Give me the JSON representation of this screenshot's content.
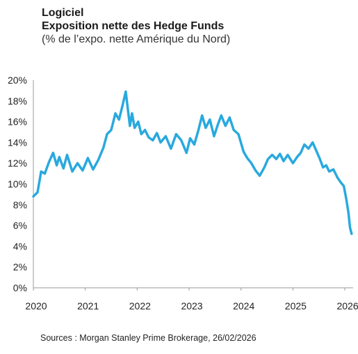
{
  "header": {
    "title": "Logiciel",
    "subtitle": "Exposition nette des Hedge Funds",
    "note": "(% de l’expo. nette Amérique du Nord)"
  },
  "source": "Sources : Morgan Stanley Prime Brokerage, 26/02/2026",
  "chart_data": {
    "type": "line",
    "title": "Exposition nette des Hedge Funds",
    "xlabel": "",
    "ylabel": "",
    "xlim": [
      2020.0,
      2026.16
    ],
    "ylim": [
      0,
      20
    ],
    "y_ticks": [
      "0%",
      "2%",
      "4%",
      "6%",
      "8%",
      "10%",
      "12%",
      "14%",
      "16%",
      "18%",
      "20%"
    ],
    "x_ticks": [
      "2020",
      "2021",
      "2022",
      "2023",
      "2024",
      "2025",
      "2026"
    ],
    "grid": false,
    "legend": "none",
    "series": [
      {
        "color": "#29a9de",
        "x": [
          2020.0,
          2020.08,
          2020.15,
          2020.22,
          2020.3,
          2020.38,
          2020.45,
          2020.5,
          2020.58,
          2020.65,
          2020.75,
          2020.85,
          2020.95,
          2021.05,
          2021.15,
          2021.25,
          2021.35,
          2021.42,
          2021.5,
          2021.58,
          2021.65,
          2021.72,
          2021.78,
          2021.82,
          2021.86,
          2021.9,
          2021.95,
          2022.02,
          2022.08,
          2022.15,
          2022.22,
          2022.3,
          2022.38,
          2022.45,
          2022.55,
          2022.65,
          2022.75,
          2022.85,
          2022.95,
          2023.02,
          2023.1,
          2023.18,
          2023.25,
          2023.32,
          2023.4,
          2023.48,
          2023.56,
          2023.62,
          2023.7,
          2023.78,
          2023.86,
          2023.95,
          2024.05,
          2024.12,
          2024.2,
          2024.28,
          2024.36,
          2024.45,
          2024.52,
          2024.6,
          2024.68,
          2024.75,
          2024.82,
          2024.9,
          2025.0,
          2025.08,
          2025.15,
          2025.22,
          2025.3,
          2025.38,
          2025.45,
          2025.52,
          2025.58,
          2025.64,
          2025.7,
          2025.78,
          2025.86,
          2025.93,
          2025.98,
          2026.03,
          2026.07,
          2026.1,
          2026.13
        ],
        "y": [
          8.8,
          9.2,
          11.2,
          11.0,
          12.1,
          13.0,
          11.8,
          12.6,
          11.5,
          12.8,
          11.2,
          12.0,
          11.3,
          12.5,
          11.4,
          12.3,
          13.5,
          14.8,
          15.2,
          16.8,
          16.2,
          17.6,
          18.9,
          17.2,
          15.6,
          16.8,
          15.4,
          16.0,
          14.8,
          15.2,
          14.5,
          14.2,
          14.9,
          14.0,
          14.6,
          13.4,
          14.8,
          14.2,
          13.0,
          14.4,
          13.8,
          15.2,
          16.6,
          15.4,
          16.2,
          14.6,
          15.8,
          16.6,
          15.6,
          16.4,
          15.2,
          14.8,
          13.1,
          12.5,
          12.0,
          11.3,
          10.8,
          11.6,
          12.4,
          12.8,
          12.4,
          12.9,
          12.2,
          12.8,
          12.0,
          12.6,
          13.0,
          13.8,
          13.4,
          14.0,
          13.2,
          12.4,
          11.6,
          11.8,
          11.2,
          11.4,
          10.6,
          10.1,
          9.8,
          8.5,
          7.2,
          5.8,
          5.2
        ]
      }
    ]
  }
}
